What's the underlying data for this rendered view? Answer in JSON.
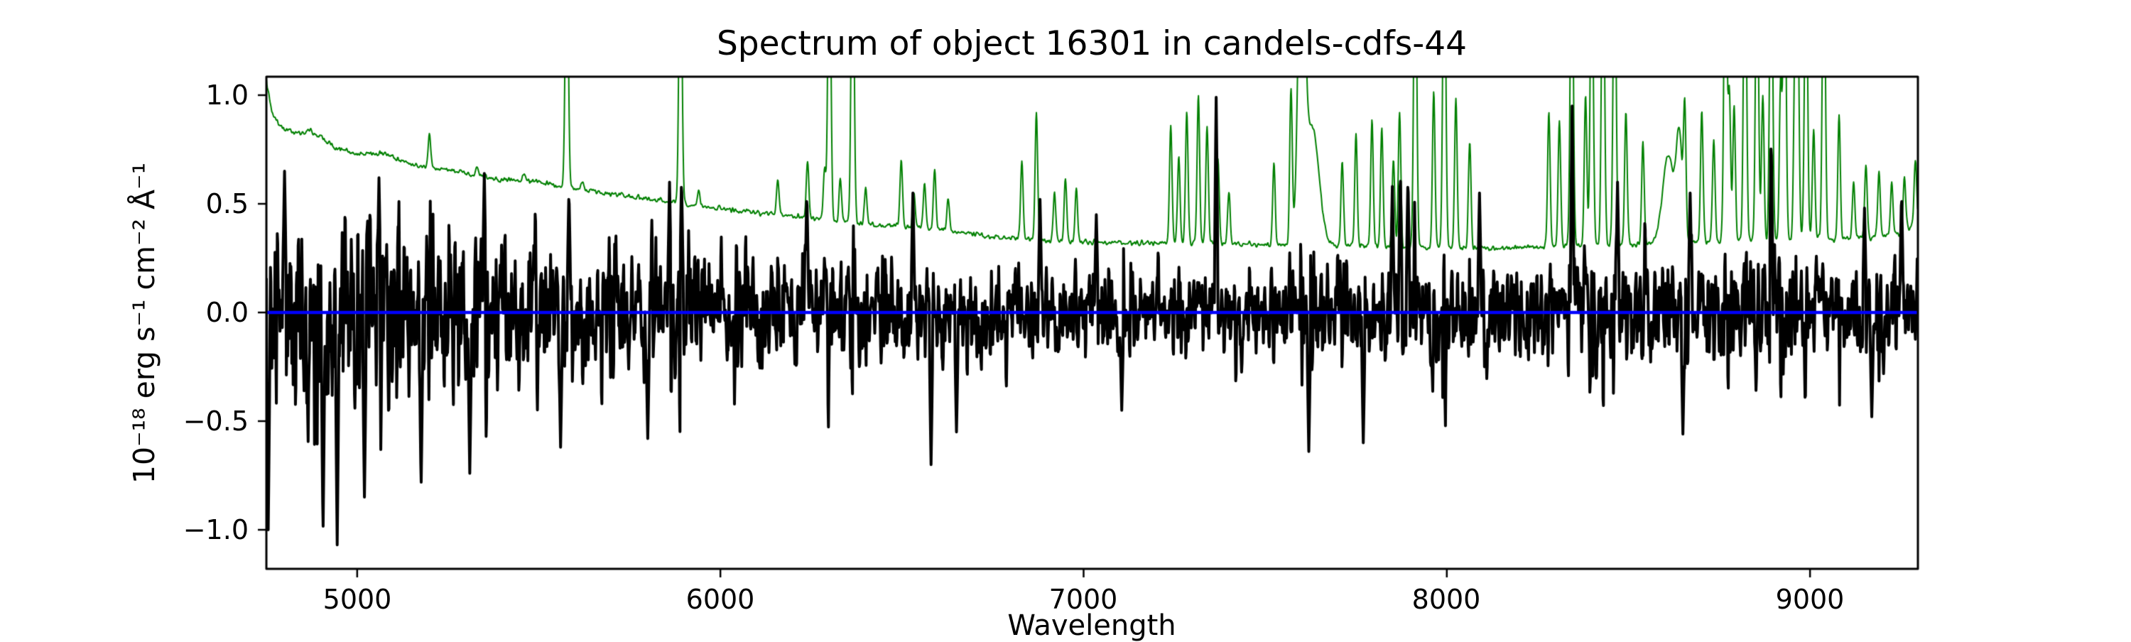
{
  "figure": {
    "background": "#ffffff",
    "kind": "matplotlib-spectrum-figure"
  },
  "chart_data": {
    "type": "line",
    "title": "Spectrum of object 16301 in candels-cdfs-44",
    "xlabel": "Wavelength",
    "ylabel": "10⁻¹⁸ erg s⁻¹ cm⁻² Å⁻¹",
    "xlim": [
      4750,
      9297
    ],
    "ylim": [
      -1.18,
      1.085
    ],
    "grid": false,
    "legend": null,
    "xticks": [
      {
        "value": 5000,
        "label": "5000"
      },
      {
        "value": 6000,
        "label": "6000"
      },
      {
        "value": 7000,
        "label": "7000"
      },
      {
        "value": 8000,
        "label": "8000"
      },
      {
        "value": 9000,
        "label": "9000"
      }
    ],
    "yticks": [
      {
        "value": 1.0,
        "label": "1.0"
      },
      {
        "value": 0.5,
        "label": "0.5"
      },
      {
        "value": 0.0,
        "label": "0.0"
      },
      {
        "value": -0.5,
        "label": "−0.5"
      },
      {
        "value": -1.0,
        "label": "−1.0"
      }
    ],
    "series": [
      {
        "name": "object-flux-spectrum",
        "color": "#000000",
        "linewidth": 4,
        "kind": "noisy-spectrum",
        "seed": 11,
        "sample_step_angstrom": 1.25,
        "mean_level": 0.0,
        "noise_sigma_envelope": [
          [
            4750,
            0.38
          ],
          [
            4950,
            0.36
          ],
          [
            5200,
            0.32
          ],
          [
            5500,
            0.28
          ],
          [
            5800,
            0.245
          ],
          [
            6200,
            0.2
          ],
          [
            6700,
            0.17
          ],
          [
            7200,
            0.155
          ],
          [
            7600,
            0.165
          ],
          [
            8000,
            0.165
          ],
          [
            8400,
            0.175
          ],
          [
            8800,
            0.17
          ],
          [
            9297,
            0.18
          ]
        ],
        "sky_residual_amplification": 0.9,
        "peaks": [
          [
            4800,
            0.65
          ],
          [
            5060,
            0.62
          ],
          [
            5350,
            0.64
          ],
          [
            5583,
            0.56
          ],
          [
            5860,
            0.6
          ],
          [
            5893,
            0.62
          ],
          [
            6238,
            0.55
          ],
          [
            6530,
            0.55
          ],
          [
            6880,
            0.52
          ],
          [
            7035,
            0.45
          ],
          [
            7365,
            0.99
          ],
          [
            7850,
            0.58
          ],
          [
            7872,
            0.65
          ],
          [
            7893,
            0.62
          ],
          [
            8090,
            0.55
          ],
          [
            8345,
            0.95
          ],
          [
            8470,
            0.6
          ],
          [
            8670,
            0.55
          ],
          [
            8893,
            0.81
          ],
          [
            9150,
            0.48
          ],
          [
            9252,
            0.55
          ]
        ],
        "dips": [
          [
            4755,
            -1.0
          ],
          [
            4906,
            -1.02
          ],
          [
            4945,
            -1.07
          ],
          [
            5020,
            -0.85
          ],
          [
            5176,
            -0.81
          ],
          [
            5310,
            -0.74
          ],
          [
            5560,
            -0.62
          ],
          [
            5800,
            -0.58
          ],
          [
            6580,
            -0.7
          ],
          [
            6650,
            -0.55
          ],
          [
            7105,
            -0.45
          ],
          [
            7620,
            -0.64
          ],
          [
            7770,
            -0.6
          ],
          [
            8650,
            -0.56
          ],
          [
            9170,
            -0.48
          ]
        ]
      },
      {
        "name": "noise-sky-spectrum",
        "color": "#008000",
        "linewidth": 2,
        "kind": "continuum-with-emission",
        "seed": 99,
        "jitter_sigma": 0.01,
        "default_spike_width_angstrom": 3.5,
        "continuum": [
          [
            4750,
            1.07
          ],
          [
            4765,
            0.92
          ],
          [
            4790,
            0.85
          ],
          [
            4850,
            0.82
          ],
          [
            4870,
            0.84
          ],
          [
            4950,
            0.75
          ],
          [
            5000,
            0.73
          ],
          [
            5080,
            0.73
          ],
          [
            5150,
            0.68
          ],
          [
            5250,
            0.655
          ],
          [
            5300,
            0.64
          ],
          [
            5400,
            0.612
          ],
          [
            5500,
            0.6
          ],
          [
            5577,
            0.575
          ],
          [
            5700,
            0.545
          ],
          [
            5800,
            0.525
          ],
          [
            5900,
            0.5
          ],
          [
            6000,
            0.475
          ],
          [
            6100,
            0.46
          ],
          [
            6200,
            0.445
          ],
          [
            6300,
            0.425
          ],
          [
            6450,
            0.4
          ],
          [
            6600,
            0.385
          ],
          [
            6750,
            0.345
          ],
          [
            6900,
            0.33
          ],
          [
            7000,
            0.325
          ],
          [
            7100,
            0.32
          ],
          [
            7300,
            0.318
          ],
          [
            7500,
            0.312
          ],
          [
            7700,
            0.308
          ],
          [
            7900,
            0.3
          ],
          [
            8100,
            0.295
          ],
          [
            8250,
            0.3
          ],
          [
            8400,
            0.31
          ],
          [
            8550,
            0.315
          ],
          [
            8700,
            0.33
          ],
          [
            8900,
            0.33
          ],
          [
            9100,
            0.34
          ],
          [
            9250,
            0.36
          ],
          [
            9297,
            0.42
          ]
        ],
        "emission_spikes": [
          [
            5199,
            0.82
          ],
          [
            5330,
            0.67
          ],
          [
            5460,
            0.64
          ],
          [
            5577,
            1.9,
            4
          ],
          [
            5620,
            0.6
          ],
          [
            5890,
            1.9,
            4
          ],
          [
            5940,
            0.56
          ],
          [
            6158,
            0.62
          ],
          [
            6240,
            0.7
          ],
          [
            6287,
            0.66
          ],
          [
            6300,
            1.9,
            4
          ],
          [
            6330,
            0.62
          ],
          [
            6364,
            1.9,
            4
          ],
          [
            6400,
            0.57
          ],
          [
            6498,
            0.7
          ],
          [
            6533,
            0.55
          ],
          [
            6562,
            0.6
          ],
          [
            6590,
            0.66
          ],
          [
            6627,
            0.52
          ],
          [
            6830,
            0.7
          ],
          [
            6870,
            0.92
          ],
          [
            6920,
            0.55
          ],
          [
            6950,
            0.62
          ],
          [
            6980,
            0.58
          ],
          [
            7240,
            0.85
          ],
          [
            7262,
            0.72
          ],
          [
            7284,
            0.92
          ],
          [
            7316,
            1.0
          ],
          [
            7340,
            0.86
          ],
          [
            7370,
            0.7
          ],
          [
            7400,
            0.55
          ],
          [
            7524,
            0.68
          ],
          [
            7571,
            1.02
          ],
          [
            7600,
            1.9,
            9
          ],
          [
            7630,
            0.85,
            18
          ],
          [
            7712,
            0.7
          ],
          [
            7750,
            0.82
          ],
          [
            7794,
            0.88
          ],
          [
            7821,
            0.85
          ],
          [
            7853,
            0.7
          ],
          [
            7870,
            0.92
          ],
          [
            7913,
            1.9,
            4
          ],
          [
            7964,
            1.02
          ],
          [
            7993,
            1.9,
            4
          ],
          [
            8025,
            0.98
          ],
          [
            8063,
            0.78
          ],
          [
            8281,
            0.92
          ],
          [
            8310,
            0.88
          ],
          [
            8344,
            1.9,
            4
          ],
          [
            8382,
            1.0
          ],
          [
            8399,
            1.8,
            4
          ],
          [
            8430,
            1.9,
            4
          ],
          [
            8462,
            1.8,
            4
          ],
          [
            8493,
            0.92
          ],
          [
            8540,
            0.78
          ],
          [
            8610,
            0.72,
            16
          ],
          [
            8640,
            0.78,
            8
          ],
          [
            8655,
            0.9
          ],
          [
            8702,
            0.92
          ],
          [
            8735,
            0.8
          ],
          [
            8767,
            1.9,
            4
          ],
          [
            8778,
            1.0
          ],
          [
            8791,
            0.95
          ],
          [
            8821,
            1.9,
            4
          ],
          [
            8854,
            1.8,
            4
          ],
          [
            8870,
            1.0
          ],
          [
            8893,
            1.9,
            4
          ],
          [
            8919,
            1.05
          ],
          [
            8930,
            1.8,
            4
          ],
          [
            8958,
            1.0
          ],
          [
            8965,
            1.7,
            4
          ],
          [
            8989,
            1.8,
            4
          ],
          [
            9010,
            0.85
          ],
          [
            9038,
            1.8,
            4
          ],
          [
            9080,
            0.9
          ],
          [
            9120,
            0.6
          ],
          [
            9154,
            0.68
          ],
          [
            9190,
            0.65
          ],
          [
            9225,
            0.6
          ],
          [
            9260,
            0.64
          ],
          [
            9290,
            0.7
          ]
        ]
      },
      {
        "name": "zero-line",
        "color": "#0000ff",
        "linewidth": 4.5,
        "kind": "hline",
        "y": 0.0
      }
    ]
  }
}
